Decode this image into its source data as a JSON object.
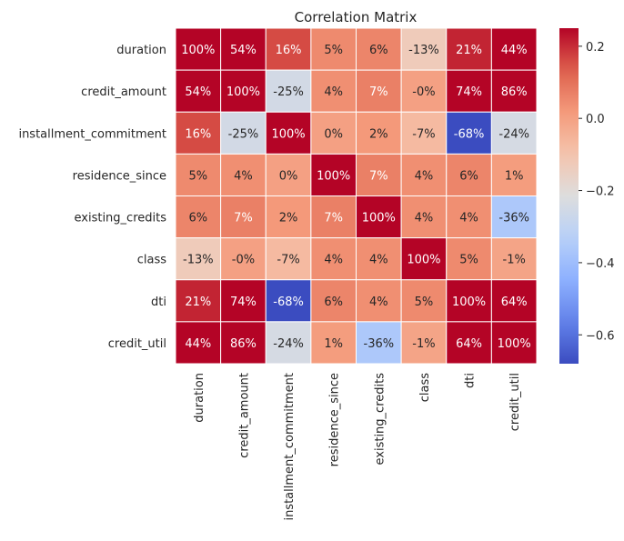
{
  "chart_data": {
    "type": "heatmap",
    "title": "Correlation Matrix",
    "rows": [
      "duration",
      "credit_amount",
      "installment_commitment",
      "residence_since",
      "existing_credits",
      "class",
      "dti",
      "credit_util"
    ],
    "columns": [
      "duration",
      "credit_amount",
      "installment_commitment",
      "residence_since",
      "existing_credits",
      "class",
      "dti",
      "credit_util"
    ],
    "values": [
      [
        1.0,
        0.54,
        0.16,
        0.05,
        0.06,
        -0.13,
        0.21,
        0.44
      ],
      [
        0.54,
        1.0,
        -0.25,
        0.04,
        0.07,
        -0.0,
        0.74,
        0.86
      ],
      [
        0.16,
        -0.25,
        1.0,
        0.0,
        0.02,
        -0.07,
        -0.68,
        -0.24
      ],
      [
        0.05,
        0.04,
        0.0,
        1.0,
        0.07,
        0.04,
        0.06,
        0.01
      ],
      [
        0.06,
        0.07,
        0.02,
        0.07,
        1.0,
        0.04,
        0.04,
        -0.36
      ],
      [
        -0.13,
        -0.0,
        -0.07,
        0.04,
        0.04,
        1.0,
        0.05,
        -0.01
      ],
      [
        0.21,
        0.74,
        -0.68,
        0.06,
        0.04,
        0.05,
        1.0,
        0.64
      ],
      [
        0.44,
        0.86,
        -0.24,
        0.01,
        -0.36,
        -0.01,
        0.64,
        1.0
      ]
    ],
    "annotations": [
      [
        "100%",
        "54%",
        "16%",
        "5%",
        "6%",
        "-13%",
        "21%",
        "44%"
      ],
      [
        "54%",
        "100%",
        "-25%",
        "4%",
        "7%",
        "-0%",
        "74%",
        "86%"
      ],
      [
        "16%",
        "-25%",
        "100%",
        "0%",
        "2%",
        "-7%",
        "-68%",
        "-24%"
      ],
      [
        "5%",
        "4%",
        "0%",
        "100%",
        "7%",
        "4%",
        "6%",
        "1%"
      ],
      [
        "6%",
        "7%",
        "2%",
        "7%",
        "100%",
        "4%",
        "4%",
        "-36%"
      ],
      [
        "-13%",
        "-0%",
        "-7%",
        "4%",
        "4%",
        "100%",
        "5%",
        "-1%"
      ],
      [
        "21%",
        "74%",
        "-68%",
        "6%",
        "4%",
        "5%",
        "100%",
        "64%"
      ],
      [
        "44%",
        "86%",
        "-24%",
        "1%",
        "-36%",
        "-1%",
        "64%",
        "100%"
      ]
    ],
    "colormap": "coolwarm",
    "vmin": -0.68,
    "vmax": 0.25,
    "colorbar": {
      "ticks": [
        0.2,
        0.0,
        -0.2,
        -0.4,
        -0.6
      ],
      "tick_labels": [
        "0.2",
        "0.0",
        "−0.2",
        "−0.4",
        "−0.6"
      ]
    },
    "grid": "white cell borders",
    "legend": "colorbar-right"
  }
}
